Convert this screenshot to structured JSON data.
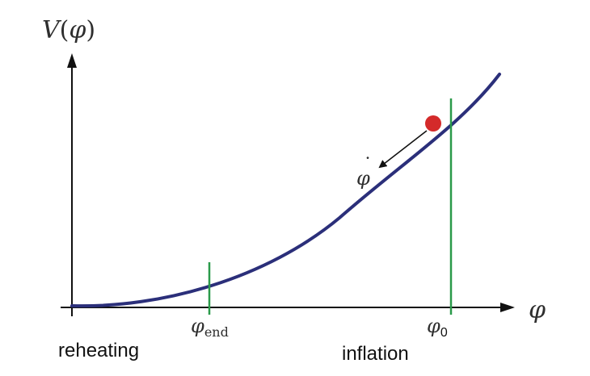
{
  "y_axis_label": {
    "main": "V",
    "open": "(",
    "var": "φ",
    "close": ")"
  },
  "x_axis_label": "φ",
  "markers": {
    "phi_end": {
      "main": "φ",
      "sub": "end"
    },
    "phi_0": {
      "main": "φ",
      "sub": "0"
    }
  },
  "velocity_label": {
    "main": "φ",
    "dot": "˙"
  },
  "regions": {
    "reheating": "reheating",
    "inflation": "inflation"
  },
  "colors": {
    "curve": "#2b2f7a",
    "marker_lines": "#2a9a4a",
    "ball": "#d42a2a",
    "axes": "#111111"
  }
}
